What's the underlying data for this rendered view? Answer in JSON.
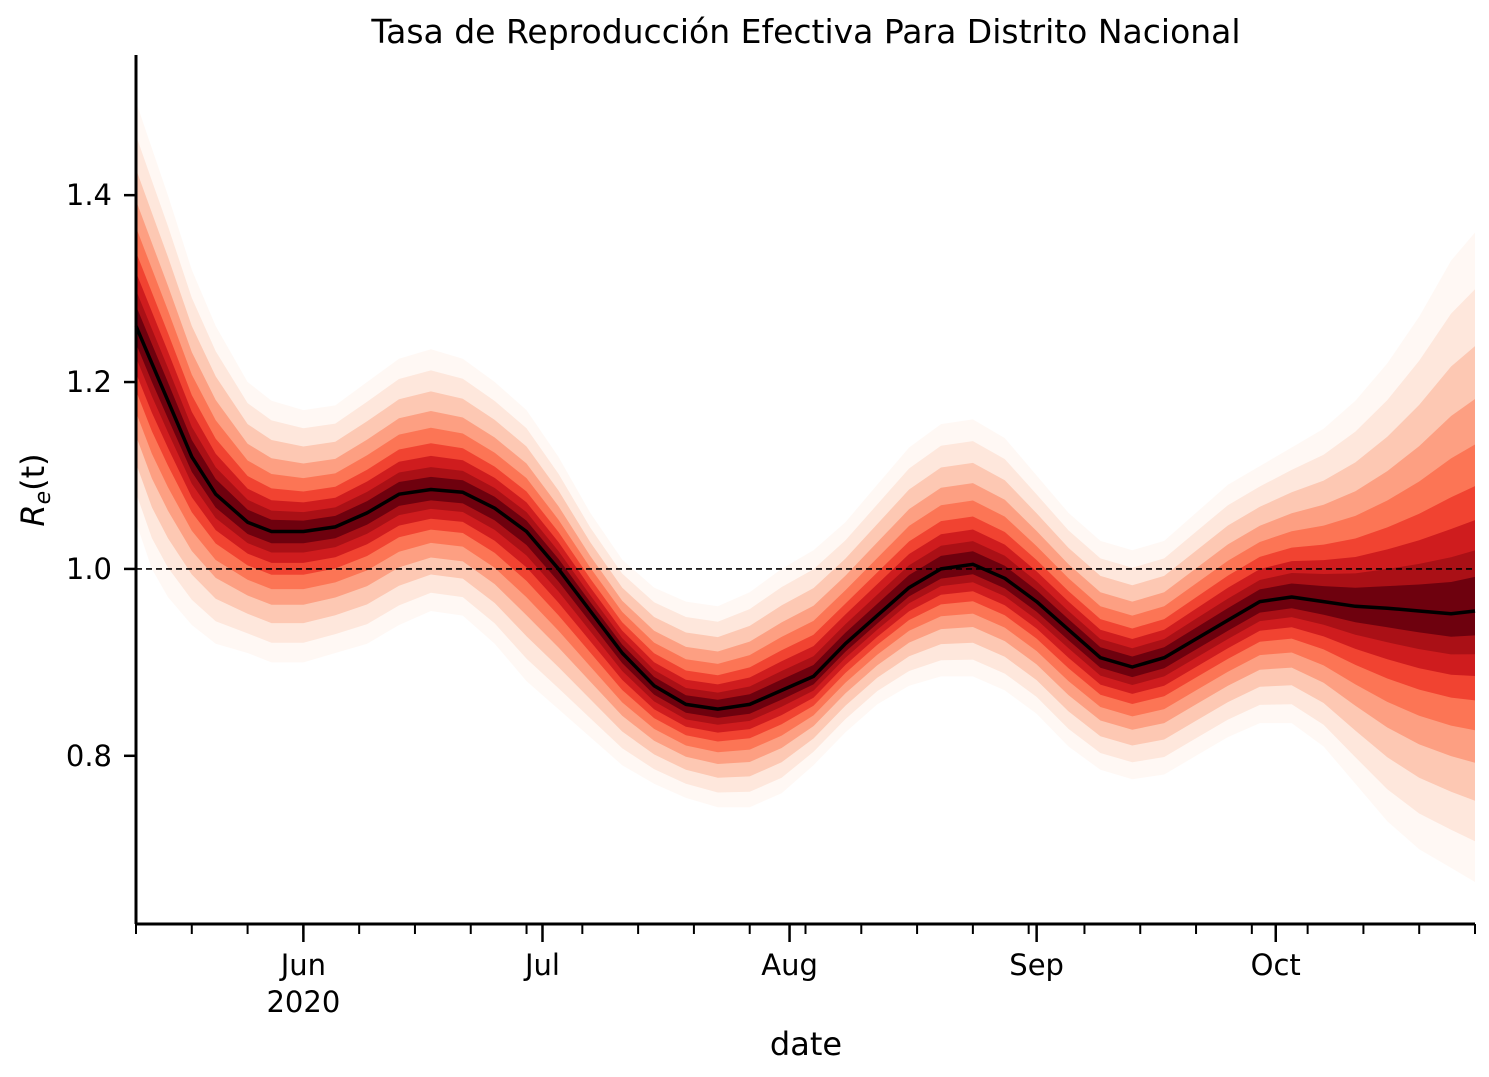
{
  "chart_data": {
    "type": "area",
    "title": "Tasa de Reproducción Efectiva Para Distrito Nacional",
    "xlabel": "date",
    "ylabel": {
      "main": "R",
      "sub": "e",
      "suffix": "(t)"
    },
    "xlim": [
      "2020-05-11",
      "2020-10-26"
    ],
    "ylim": [
      0.62,
      1.55
    ],
    "yticks": [
      0.8,
      1.0,
      1.2,
      1.4
    ],
    "ytick_labels": [
      "0.8",
      "1.0",
      "1.2",
      "1.4"
    ],
    "xticks_major": [
      {
        "date": "2020-06-01",
        "label": "Jun",
        "sublabel": "2020"
      },
      {
        "date": "2020-07-01",
        "label": "Jul",
        "sublabel": ""
      },
      {
        "date": "2020-08-01",
        "label": "Aug",
        "sublabel": ""
      },
      {
        "date": "2020-09-01",
        "label": "Sep",
        "sublabel": ""
      },
      {
        "date": "2020-10-01",
        "label": "Oct",
        "sublabel": ""
      }
    ],
    "reference_line": {
      "y": 1.0,
      "style": "dashed",
      "color": "#000000"
    },
    "grid": false,
    "colors": {
      "median": "#000000",
      "band_dark": "#67000d",
      "band_mid": "#ef3b2c",
      "band_light": "#fee0d2"
    },
    "series": [
      {
        "x": [
          "2020-05-11",
          "2020-05-13",
          "2020-05-15",
          "2020-05-18",
          "2020-05-21",
          "2020-05-25",
          "2020-05-28",
          "2020-06-01",
          "2020-06-05",
          "2020-06-09",
          "2020-06-13",
          "2020-06-17",
          "2020-06-21",
          "2020-06-25",
          "2020-06-29",
          "2020-07-03",
          "2020-07-07",
          "2020-07-11",
          "2020-07-15",
          "2020-07-19",
          "2020-07-23",
          "2020-07-27",
          "2020-07-31",
          "2020-08-04",
          "2020-08-08",
          "2020-08-12",
          "2020-08-16",
          "2020-08-20",
          "2020-08-24",
          "2020-08-28",
          "2020-09-01",
          "2020-09-05",
          "2020-09-09",
          "2020-09-13",
          "2020-09-17",
          "2020-09-21",
          "2020-09-25",
          "2020-09-29",
          "2020-10-03",
          "2020-10-07",
          "2020-10-11",
          "2020-10-15",
          "2020-10-19",
          "2020-10-23",
          "2020-10-26"
        ],
        "median": [
          1.26,
          1.22,
          1.18,
          1.12,
          1.08,
          1.05,
          1.04,
          1.04,
          1.045,
          1.06,
          1.08,
          1.085,
          1.082,
          1.065,
          1.04,
          1.0,
          0.955,
          0.91,
          0.875,
          0.855,
          0.85,
          0.855,
          0.87,
          0.885,
          0.92,
          0.95,
          0.98,
          1.0,
          1.005,
          0.99,
          0.965,
          0.935,
          0.905,
          0.895,
          0.905,
          0.925,
          0.945,
          0.965,
          0.97,
          0.965,
          0.96,
          0.958,
          0.955,
          0.952,
          0.955
        ],
        "lower": [
          1.05,
          1.0,
          0.97,
          0.94,
          0.92,
          0.91,
          0.9,
          0.9,
          0.91,
          0.92,
          0.94,
          0.955,
          0.95,
          0.92,
          0.88,
          0.85,
          0.82,
          0.79,
          0.77,
          0.755,
          0.745,
          0.745,
          0.76,
          0.79,
          0.825,
          0.855,
          0.875,
          0.885,
          0.885,
          0.87,
          0.845,
          0.81,
          0.785,
          0.775,
          0.78,
          0.8,
          0.82,
          0.835,
          0.835,
          0.81,
          0.77,
          0.73,
          0.7,
          0.68,
          0.665
        ],
        "upper": [
          1.5,
          1.45,
          1.4,
          1.32,
          1.26,
          1.2,
          1.18,
          1.17,
          1.175,
          1.2,
          1.225,
          1.235,
          1.225,
          1.2,
          1.17,
          1.12,
          1.06,
          1.01,
          0.98,
          0.965,
          0.96,
          0.975,
          1.0,
          1.02,
          1.05,
          1.09,
          1.13,
          1.155,
          1.16,
          1.14,
          1.1,
          1.06,
          1.03,
          1.02,
          1.03,
          1.06,
          1.09,
          1.11,
          1.13,
          1.15,
          1.18,
          1.22,
          1.27,
          1.33,
          1.36
        ]
      }
    ]
  }
}
